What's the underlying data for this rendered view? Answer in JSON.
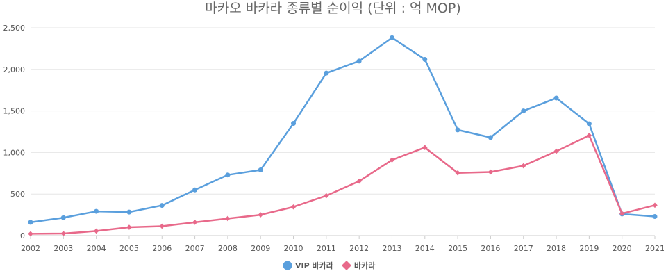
{
  "chart_data": {
    "type": "line",
    "title": "마카오 바카라 종류별 순이익 (단위 : 억 MOP)",
    "xlabel": "",
    "ylabel": "",
    "categories": [
      "2002",
      "2003",
      "2004",
      "2005",
      "2006",
      "2007",
      "2008",
      "2009",
      "2010",
      "2011",
      "2012",
      "2013",
      "2014",
      "2015",
      "2016",
      "2017",
      "2018",
      "2019",
      "2020",
      "2021"
    ],
    "ylim": [
      0,
      2500
    ],
    "yticks": [
      0,
      500,
      1000,
      1500,
      2000,
      2500
    ],
    "ytick_labels": [
      "0",
      "500",
      "1,000",
      "1,500",
      "2,000",
      "2,500"
    ],
    "grid": true,
    "legend_position": "bottom-center",
    "series": [
      {
        "name": "VIP 바카라",
        "color": "#5a9fdd",
        "marker": "circle",
        "values": [
          160,
          215,
          292,
          283,
          363,
          550,
          730,
          790,
          1350,
          1955,
          2100,
          2380,
          2120,
          1272,
          1180,
          1500,
          1655,
          1345,
          260,
          230
        ]
      },
      {
        "name": "바카라",
        "color": "#e8698a",
        "marker": "diamond",
        "values": [
          22,
          25,
          55,
          100,
          113,
          160,
          205,
          250,
          345,
          480,
          655,
          910,
          1060,
          755,
          765,
          840,
          1015,
          1205,
          265,
          365
        ]
      }
    ]
  }
}
